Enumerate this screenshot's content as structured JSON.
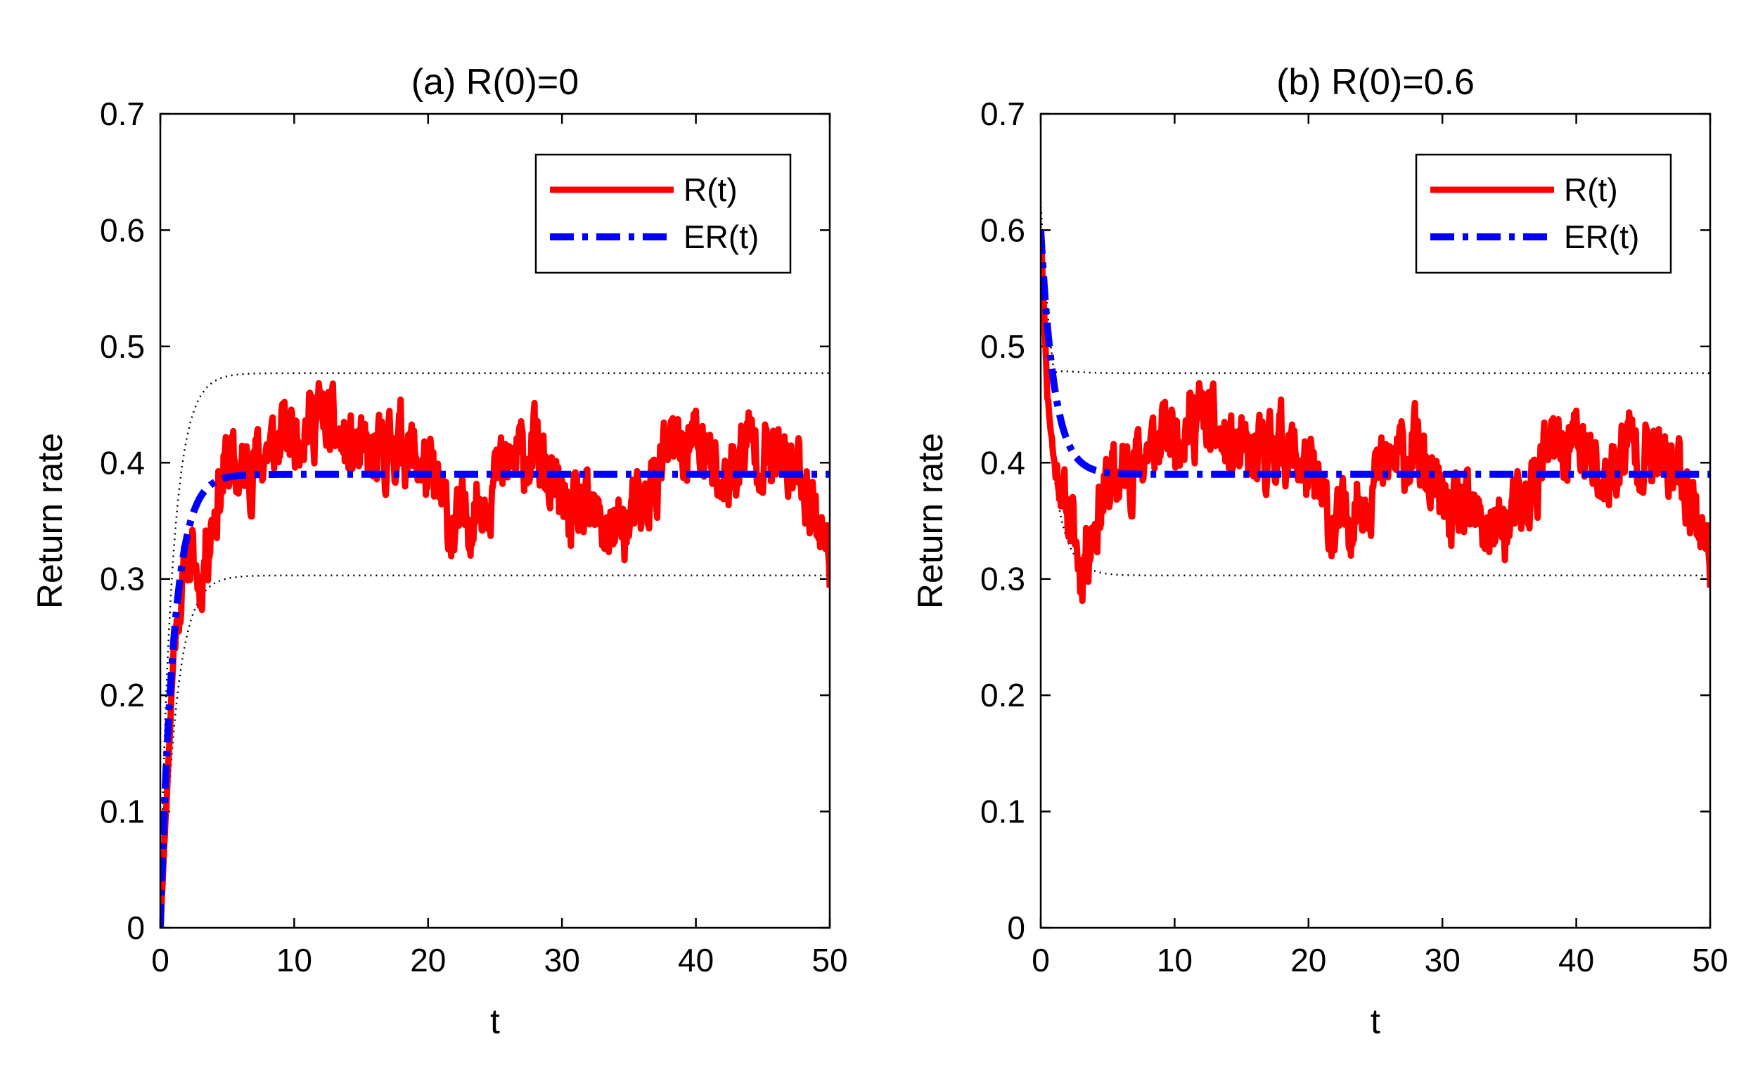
{
  "chart_data": [
    {
      "type": "line",
      "title": "(a) R(0)=0",
      "xlabel": "t",
      "ylabel": "Return rate",
      "xlim": [
        0,
        50
      ],
      "ylim": [
        0,
        0.7
      ],
      "xticks": [
        "0",
        "10",
        "20",
        "30",
        "40",
        "50"
      ],
      "yticks": [
        "0",
        "0.1",
        "0.2",
        "0.3",
        "0.4",
        "0.5",
        "0.6",
        "0.7"
      ],
      "legend": {
        "position": "top-right",
        "entries": [
          "R(t)",
          "ER(t)"
        ]
      },
      "model": {
        "R0": 0,
        "mean": 0.39,
        "rate": 1.0,
        "band_half_width": 0.087,
        "band_rate": 0.8
      },
      "series": [
        {
          "name": "R(t)",
          "color": "#ff0000",
          "style": "solid",
          "seed": 11,
          "x": [
            0,
            1,
            2,
            3,
            4,
            5,
            6,
            8,
            10,
            12,
            14,
            16,
            18,
            20,
            22,
            24,
            26,
            28,
            30,
            32,
            34,
            36,
            38,
            40,
            42,
            44,
            46,
            48,
            50
          ],
          "values": [
            0.0,
            0.24,
            0.32,
            0.3,
            0.36,
            0.4,
            0.39,
            0.41,
            0.43,
            0.44,
            0.41,
            0.4,
            0.42,
            0.39,
            0.34,
            0.37,
            0.4,
            0.41,
            0.36,
            0.35,
            0.34,
            0.36,
            0.41,
            0.42,
            0.38,
            0.42,
            0.4,
            0.39,
            0.32
          ]
        },
        {
          "name": "ER(t)",
          "color": "#0000ff",
          "style": "dash-dot"
        },
        {
          "name": "upper bound",
          "color": "#000000",
          "style": "dotted"
        },
        {
          "name": "lower bound",
          "color": "#000000",
          "style": "dotted"
        }
      ]
    },
    {
      "type": "line",
      "title": "(b) R(0)=0.6",
      "xlabel": "t",
      "ylabel": "Return rate",
      "xlim": [
        0,
        50
      ],
      "ylim": [
        0,
        0.7
      ],
      "xticks": [
        "0",
        "10",
        "20",
        "30",
        "40",
        "50"
      ],
      "yticks": [
        "0",
        "0.1",
        "0.2",
        "0.3",
        "0.4",
        "0.5",
        "0.6",
        "0.7"
      ],
      "legend": {
        "position": "top-right",
        "entries": [
          "R(t)",
          "ER(t)"
        ]
      },
      "model": {
        "R0": 0.6,
        "mean": 0.39,
        "rate": 1.0,
        "band_half_width": 0.087,
        "band_rate": 0.8
      },
      "series": [
        {
          "name": "R(t)",
          "color": "#ff0000",
          "style": "solid",
          "seed": 11,
          "x": [
            0,
            0.5,
            1,
            2,
            3,
            4,
            5,
            6,
            8,
            10,
            12,
            14,
            16,
            18,
            20,
            22,
            24,
            26,
            28,
            30,
            32,
            34,
            36,
            38,
            40,
            42,
            44,
            46,
            48,
            50
          ],
          "values": [
            0.6,
            0.46,
            0.4,
            0.36,
            0.31,
            0.35,
            0.38,
            0.39,
            0.41,
            0.43,
            0.44,
            0.41,
            0.4,
            0.42,
            0.39,
            0.34,
            0.37,
            0.4,
            0.41,
            0.36,
            0.35,
            0.34,
            0.36,
            0.41,
            0.42,
            0.38,
            0.42,
            0.4,
            0.39,
            0.32
          ]
        },
        {
          "name": "ER(t)",
          "color": "#0000ff",
          "style": "dash-dot"
        },
        {
          "name": "upper bound",
          "color": "#000000",
          "style": "dotted"
        },
        {
          "name": "lower bound",
          "color": "#000000",
          "style": "dotted"
        }
      ]
    }
  ]
}
